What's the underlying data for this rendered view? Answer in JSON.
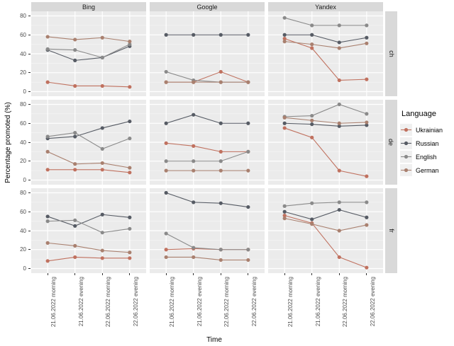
{
  "figure": {
    "y_axis_title": "Percentage promoted (%)",
    "x_axis_title": "Time",
    "legend_title": "Language"
  },
  "colors": {
    "Ukrainian": "#C0715F",
    "Russian": "#565B64",
    "English": "#8A8A8A",
    "German": "#A9806F",
    "panel_bg": "#EBEBEB",
    "strip_bg": "#D9D9D9",
    "gridline": "#FFFFFF",
    "tick_text": "#4d4d4d"
  },
  "chart_data": {
    "type": "line",
    "title": "",
    "xlabel": "Time",
    "ylabel": "Percentage promoted (%)",
    "legend_title": "Language",
    "legend_position": "right",
    "grid": true,
    "facet_cols": [
      "Bing",
      "Google",
      "Yandex"
    ],
    "facet_rows": [
      "ch",
      "de",
      "fr"
    ],
    "x_categories": [
      "21.06.2022 morning",
      "21.06.2022 evening",
      "22.06.2022 morning",
      "22.06.2022 evening"
    ],
    "ylim": [
      0,
      80
    ],
    "y_ticks": [
      0,
      20,
      40,
      60,
      80
    ],
    "y_minor_ticks": [
      10,
      30,
      50,
      70
    ],
    "series_names": [
      "Ukrainian",
      "Russian",
      "English",
      "German"
    ],
    "panels": [
      {
        "col": "Bing",
        "row": "ch",
        "series": {
          "Ukrainian": [
            10,
            6,
            6,
            5
          ],
          "Russian": [
            44,
            33,
            36,
            48
          ],
          "English": [
            45,
            44,
            36,
            50
          ],
          "German": [
            58,
            55,
            57,
            53
          ]
        }
      },
      {
        "col": "Google",
        "row": "ch",
        "series": {
          "Ukrainian": [
            10,
            10,
            21,
            10
          ],
          "Russian": [
            60,
            60,
            60,
            60
          ],
          "English": [
            21,
            12,
            10,
            10
          ],
          "German": [
            10,
            10,
            10,
            10
          ]
        }
      },
      {
        "col": "Yandex",
        "row": "ch",
        "series": {
          "Ukrainian": [
            56,
            46,
            12,
            13
          ],
          "Russian": [
            60,
            60,
            52,
            57
          ],
          "English": [
            78,
            70,
            70,
            70
          ],
          "German": [
            53,
            50,
            46,
            51
          ]
        }
      },
      {
        "col": "Bing",
        "row": "de",
        "series": {
          "Ukrainian": [
            11,
            11,
            11,
            8
          ],
          "Russian": [
            44,
            46,
            55,
            62
          ],
          "English": [
            46,
            50,
            33,
            44
          ],
          "German": [
            30,
            17,
            18,
            13
          ]
        }
      },
      {
        "col": "Google",
        "row": "de",
        "series": {
          "Ukrainian": [
            39,
            36,
            30,
            30
          ],
          "Russian": [
            60,
            69,
            60,
            60
          ],
          "English": [
            20,
            20,
            20,
            30
          ],
          "German": [
            10,
            10,
            10,
            10
          ]
        }
      },
      {
        "col": "Yandex",
        "row": "de",
        "series": {
          "Ukrainian": [
            55,
            45,
            10,
            4
          ],
          "Russian": [
            60,
            59,
            57,
            58
          ],
          "English": [
            67,
            68,
            80,
            70
          ],
          "German": [
            66,
            63,
            60,
            61
          ]
        }
      },
      {
        "col": "Bing",
        "row": "fr",
        "series": {
          "Ukrainian": [
            8,
            12,
            11,
            11
          ],
          "Russian": [
            55,
            45,
            57,
            54
          ],
          "English": [
            50,
            51,
            38,
            42
          ],
          "German": [
            27,
            24,
            19,
            17
          ]
        }
      },
      {
        "col": "Google",
        "row": "fr",
        "series": {
          "Ukrainian": [
            20,
            21,
            20,
            20
          ],
          "Russian": [
            80,
            70,
            69,
            65
          ],
          "English": [
            37,
            22,
            20,
            20
          ],
          "German": [
            12,
            12,
            9,
            9
          ]
        }
      },
      {
        "col": "Yandex",
        "row": "fr",
        "series": {
          "Ukrainian": [
            56,
            48,
            12,
            1
          ],
          "Russian": [
            60,
            52,
            62,
            54
          ],
          "English": [
            66,
            69,
            70,
            70
          ],
          "German": [
            53,
            47,
            40,
            46
          ]
        }
      }
    ]
  }
}
